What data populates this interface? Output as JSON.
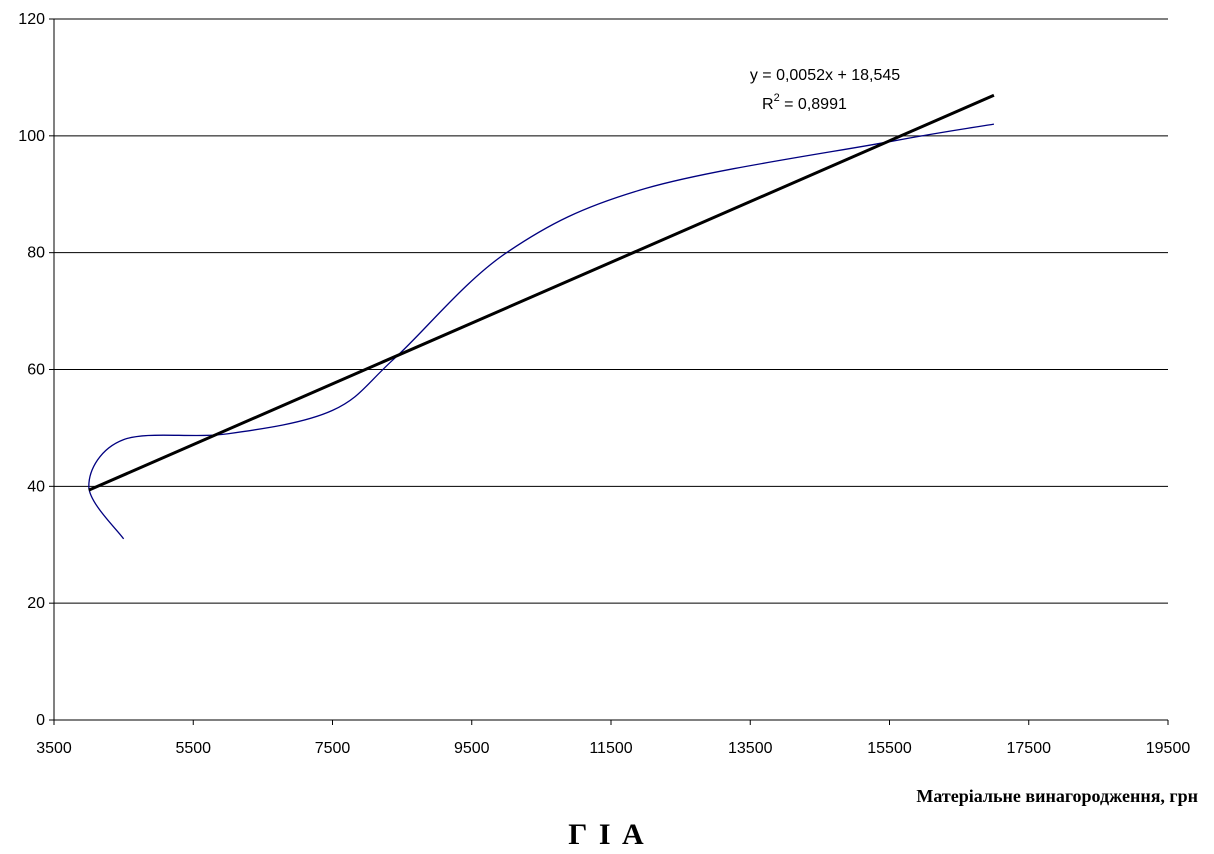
{
  "chart_data": {
    "type": "scatter",
    "xlabel": "Матеріальне винагородження, грн",
    "ylabel": "",
    "xlim": [
      3500,
      19500
    ],
    "ylim": [
      0,
      120
    ],
    "x_ticks": [
      "3500",
      "5500",
      "7500",
      "9500",
      "11500",
      "13500",
      "15500",
      "17500",
      "19500"
    ],
    "y_ticks": [
      "0",
      "20",
      "40",
      "60",
      "80",
      "100",
      "120"
    ],
    "grid": "horizontal",
    "series": [
      {
        "style": "smoothed-line",
        "color": "#000080",
        "x": [
          4500,
          4000,
          4500,
          6000,
          7500,
          8400,
          10000,
          12000,
          15500,
          17000
        ],
        "y": [
          31,
          40,
          48,
          49,
          53,
          62,
          80,
          91,
          99,
          102
        ]
      },
      {
        "style": "linear-trendline",
        "color": "#000000",
        "x": [
          4000,
          17000
        ],
        "y": [
          39.345,
          106.945
        ]
      }
    ],
    "annotations": {
      "equation": "y = 0,0052x + 18,545",
      "r2_prefix": "R",
      "r2_sup": "2",
      "r2_value": " = 0,8991"
    }
  },
  "caption": "Г І А"
}
